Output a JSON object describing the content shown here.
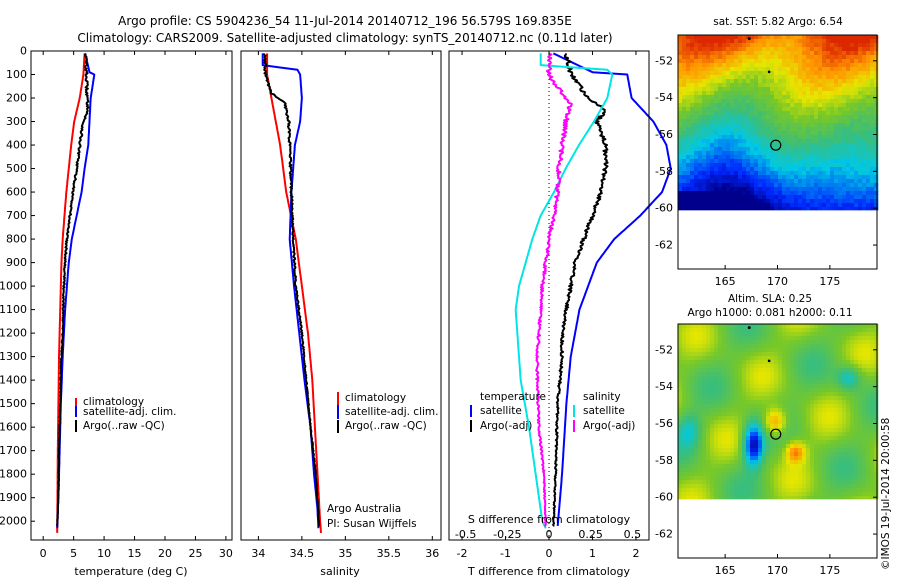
{
  "title": {
    "line1": "Argo profile: CS 5904236_54 11-Jul-2014 20140712_196 56.579S 169.835E",
    "line2": "Climatology: CARS2009. Satellite-adjusted climatology: synTS_20140712.nc (0.11d later)"
  },
  "colors": {
    "climatology": "#ff0000",
    "satellite": "#0000ff",
    "argo": "#000000",
    "s_satellite": "#00e5e5",
    "s_argo": "#ff00ff"
  },
  "chart_data": [
    {
      "type": "line",
      "name": "temperature-profile",
      "xlabel": "temperature (deg C)",
      "xlim": [
        -2,
        31
      ],
      "xticks": [
        "0",
        "5",
        "10",
        "15",
        "20",
        "25",
        "30"
      ],
      "ylim": [
        0,
        2080
      ],
      "y_reversed": true,
      "yticks": [
        "0",
        "100",
        "200",
        "300",
        "400",
        "500",
        "600",
        "700",
        "800",
        "900",
        "1000",
        "1100",
        "1200",
        "1300",
        "1400",
        "1500",
        "1600",
        "1700",
        "1800",
        "1900",
        "2000"
      ],
      "legend": {
        "position": "lower-right",
        "entries": [
          "climatology",
          "satellite-adj. clim.",
          "Argo(..raw -QC)"
        ]
      },
      "series": [
        {
          "name": "climatology",
          "depth": [
            10,
            100,
            200,
            300,
            400,
            500,
            600,
            700,
            800,
            900,
            1000,
            1100,
            1200,
            1300,
            1500,
            1700,
            1900,
            2050
          ],
          "values": [
            6.8,
            6.6,
            6.0,
            5.1,
            4.6,
            4.2,
            3.8,
            3.5,
            3.2,
            3.0,
            2.9,
            2.8,
            2.7,
            2.6,
            2.5,
            2.4,
            2.35,
            2.3
          ]
        },
        {
          "name": "satellite-adj. clim.",
          "depth": [
            10,
            90,
            100,
            200,
            300,
            400,
            500,
            600,
            700,
            800,
            900,
            1000,
            1100,
            1200,
            1300,
            1500,
            1700,
            1900,
            2030
          ],
          "values": [
            6.9,
            7.6,
            8.4,
            7.8,
            7.6,
            7.4,
            6.8,
            6.3,
            5.5,
            4.7,
            4.2,
            3.9,
            3.6,
            3.4,
            3.2,
            2.9,
            2.7,
            2.5,
            2.3
          ]
        },
        {
          "name": "Argo(..raw -QC)",
          "depth": [
            10,
            100,
            200,
            250,
            300,
            400,
            500,
            600,
            700,
            800,
            900,
            1000,
            1100,
            1200,
            1300,
            1500,
            1700,
            1900,
            2020
          ],
          "values": [
            7.0,
            7.1,
            7.2,
            7.4,
            6.6,
            6.0,
            5.5,
            4.9,
            4.4,
            3.9,
            3.6,
            3.4,
            3.3,
            3.2,
            3.0,
            2.8,
            2.6,
            2.5,
            2.3
          ]
        }
      ]
    },
    {
      "type": "line",
      "name": "salinity-profile",
      "xlabel": "salinity",
      "xlim": [
        33.8,
        36.1
      ],
      "xticks": [
        "34",
        "34.5",
        "35",
        "35.5",
        "36"
      ],
      "ylim": [
        0,
        2080
      ],
      "y_reversed": true,
      "legend": {
        "position": "lower-right",
        "entries": [
          "climatology",
          "satellite-adj. clim.",
          "Argo(..raw -QC)"
        ]
      },
      "annotation": [
        "Argo Australia",
        "PI: Susan Wijffels"
      ],
      "series": [
        {
          "name": "climatology",
          "depth": [
            10,
            100,
            200,
            300,
            400,
            600,
            800,
            1000,
            1200,
            1400,
            1600,
            1800,
            2000,
            2050
          ],
          "values": [
            34.1,
            34.1,
            34.15,
            34.2,
            34.25,
            34.32,
            34.43,
            34.5,
            34.57,
            34.62,
            34.65,
            34.68,
            34.71,
            34.72
          ]
        },
        {
          "name": "satellite-adj. clim.",
          "depth": [
            10,
            60,
            80,
            100,
            200,
            300,
            400,
            600,
            800,
            1000,
            1200,
            1400,
            1600,
            1800,
            1950,
            2030
          ],
          "values": [
            34.05,
            34.05,
            34.45,
            34.48,
            34.5,
            34.48,
            34.42,
            34.38,
            34.36,
            34.41,
            34.47,
            34.53,
            34.6,
            34.64,
            34.68,
            34.69
          ]
        },
        {
          "name": "Argo(..raw -QC)",
          "depth": [
            10,
            100,
            180,
            220,
            300,
            400,
            600,
            800,
            1000,
            1200,
            1400,
            1600,
            1800,
            2020
          ],
          "values": [
            34.07,
            34.08,
            34.15,
            34.3,
            34.35,
            34.36,
            34.38,
            34.4,
            34.43,
            34.5,
            34.55,
            34.6,
            34.66,
            34.7
          ]
        }
      ]
    },
    {
      "type": "line",
      "name": "difference-profile",
      "xlabel": "T difference from climatology",
      "xlabel_top": "S difference from climatology",
      "xlim": [
        -2.3,
        2.3
      ],
      "xticks": [
        "-2",
        "-1",
        "0",
        "1",
        "2"
      ],
      "s_xticks": [
        "-0.5",
        "-0.25",
        "0",
        "0.25",
        "0.5"
      ],
      "ylim": [
        0,
        2080
      ],
      "y_reversed": true,
      "legend": {
        "position": "lower-right",
        "titles": [
          "temperature",
          "salinity"
        ],
        "entries": [
          "satellite",
          "Argo(-adj)",
          "satellite",
          "Argo(-adj)"
        ]
      },
      "series": [
        {
          "name": "satellite",
          "quantity": "temperature",
          "depth": [
            10,
            90,
            100,
            200,
            300,
            400,
            500,
            600,
            700,
            800,
            900,
            1000,
            1100,
            1200,
            1300,
            1500,
            1800,
            2020
          ],
          "values": [
            0.1,
            1.0,
            1.8,
            1.9,
            2.4,
            2.7,
            2.8,
            2.6,
            2.1,
            1.5,
            1.1,
            0.9,
            0.7,
            0.6,
            0.5,
            0.4,
            0.3,
            0.2
          ]
        },
        {
          "name": "Argo(-adj)",
          "quantity": "temperature",
          "depth": [
            10,
            100,
            200,
            250,
            300,
            400,
            500,
            600,
            700,
            800,
            900,
            1000,
            1100,
            1200,
            1300,
            1500,
            1800,
            2020
          ],
          "values": [
            0.4,
            0.5,
            0.9,
            1.3,
            1.1,
            1.3,
            1.3,
            1.2,
            1.0,
            0.8,
            0.6,
            0.5,
            0.4,
            0.3,
            0.3,
            0.2,
            0.15,
            0.1
          ]
        },
        {
          "name": "satellite",
          "quantity": "salinity",
          "depth": [
            10,
            60,
            80,
            100,
            200,
            300,
            400,
            500,
            600,
            700,
            800,
            900,
            1000,
            1100,
            1200,
            1300,
            1400,
            1600,
            1800,
            2000,
            2030
          ],
          "values": [
            -0.05,
            -0.05,
            0.35,
            0.38,
            0.35,
            0.27,
            0.18,
            0.1,
            0.03,
            -0.05,
            -0.1,
            -0.14,
            -0.18,
            -0.2,
            -0.19,
            -0.18,
            -0.17,
            -0.12,
            -0.08,
            -0.04,
            -0.02
          ]
        },
        {
          "name": "Argo(-adj)",
          "quantity": "salinity",
          "depth": [
            10,
            100,
            200,
            230,
            300,
            400,
            500,
            600,
            700,
            800,
            900,
            1000,
            1100,
            1200,
            1300,
            1400,
            1600,
            1800,
            2020
          ],
          "values": [
            0.0,
            0.0,
            0.1,
            0.13,
            0.1,
            0.08,
            0.06,
            0.05,
            0.03,
            0.0,
            -0.02,
            -0.04,
            -0.05,
            -0.06,
            -0.07,
            -0.07,
            -0.06,
            -0.03,
            -0.02
          ]
        }
      ]
    },
    {
      "type": "heatmap",
      "name": "sst-map",
      "title": "sat. SST: 5.82 Argo: 6.54",
      "xlim": [
        160.5,
        179.5
      ],
      "ylim": [
        -63.3,
        -50.6
      ],
      "xticks": [
        "165",
        "170",
        "175"
      ],
      "yticks": [
        "-52",
        "-54",
        "-56",
        "-58",
        "-60",
        "-62"
      ],
      "data_lat_range": [
        -60.1,
        -50.6
      ],
      "argo_position": [
        169.835,
        -56.579
      ]
    },
    {
      "type": "heatmap",
      "name": "sla-map",
      "title_lines": [
        "Altim. SLA: 0.25",
        "Argo h1000: 0.081 h2000: 0.11"
      ],
      "xlim": [
        160.5,
        179.5
      ],
      "ylim": [
        -63.3,
        -50.6
      ],
      "xticks": [
        "165",
        "170",
        "175"
      ],
      "yticks": [
        "-52",
        "-54",
        "-56",
        "-58",
        "-60",
        "-62"
      ],
      "data_lat_range": [
        -60.1,
        -50.6
      ],
      "argo_position": [
        169.835,
        -56.579
      ]
    }
  ],
  "watermark": "©IMOS 19-Jul-2014 20:00:58"
}
